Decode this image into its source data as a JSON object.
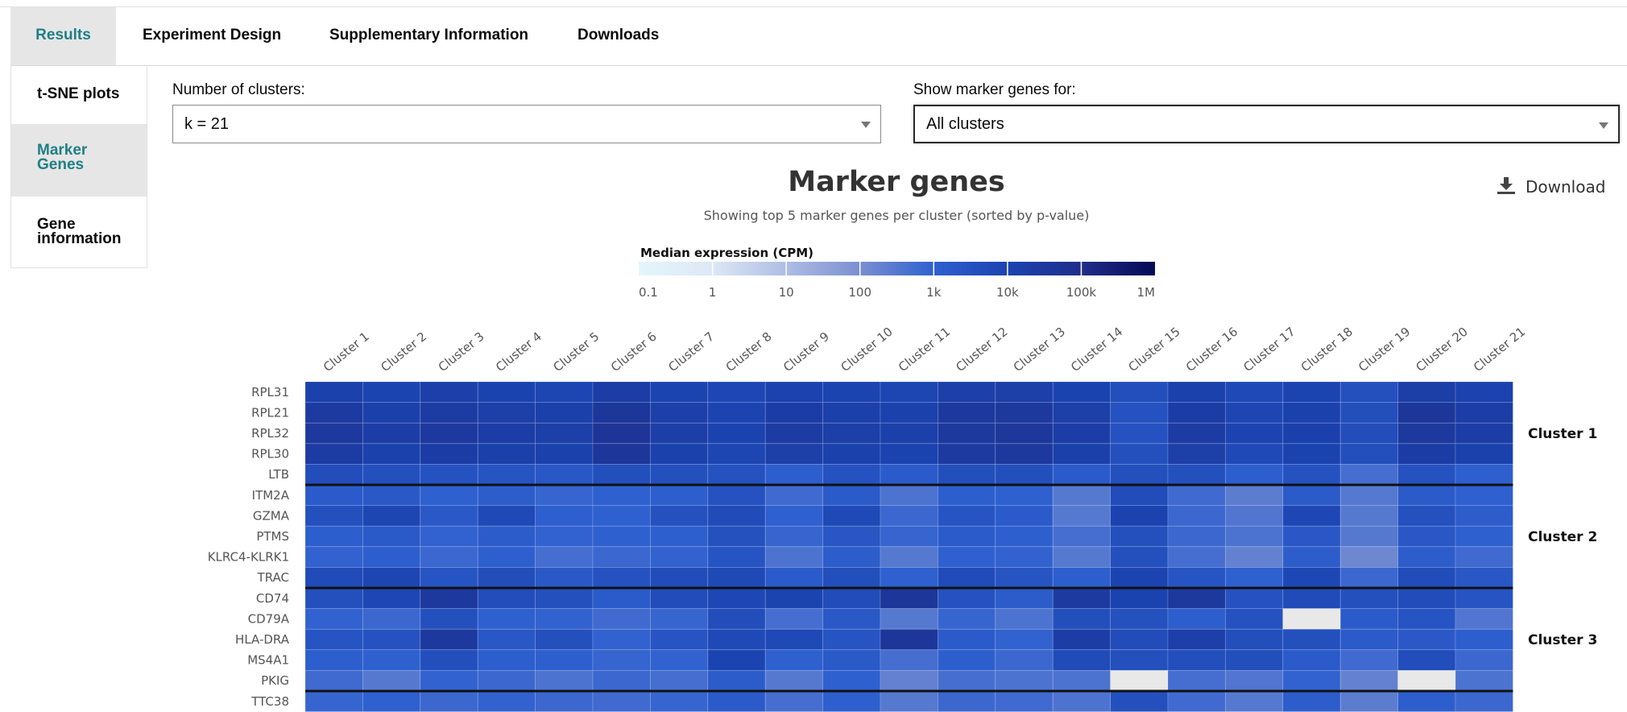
{
  "tabs": [
    {
      "label": "Results"
    },
    {
      "label": "Experiment Design"
    },
    {
      "label": "Supplementary Information"
    },
    {
      "label": "Downloads"
    }
  ],
  "sidebar": {
    "items": [
      {
        "line1": "t-SNE plots",
        "line2": ""
      },
      {
        "line1": "Marker",
        "line2": "Genes"
      },
      {
        "line1": "Gene",
        "line2": "information"
      }
    ]
  },
  "controls": {
    "clusters_label": "Number of clusters:",
    "clusters_value": "k = 21",
    "marker_label": "Show marker genes for:",
    "marker_value": "All clusters"
  },
  "download_label": "Download",
  "colors": {
    "accent": "#1f7f86",
    "missing": "#e8e8e8",
    "divider": "#111111"
  },
  "icons": {
    "download": "download-icon",
    "caret": "chevron-down-icon"
  },
  "chart_data": {
    "type": "heatmap",
    "title": "Marker genes",
    "subtitle": "Showing top 5 marker genes per cluster (sorted by p-value)",
    "legend_title": "Median expression (CPM)",
    "legend_ticks": [
      "0.1",
      "1",
      "10",
      "100",
      "1k",
      "10k",
      "100k",
      "1M"
    ],
    "legend_scale": "log10",
    "legend_range": [
      0.1,
      1000000
    ],
    "legend_colors": [
      "#e3f6fb",
      "#dce8f6",
      "#aebde4",
      "#7a8fd1",
      "#2f60cf",
      "#1b43b0",
      "#1f2d8a",
      "#070a55"
    ],
    "x": [
      "Cluster 1",
      "Cluster 2",
      "Cluster 3",
      "Cluster 4",
      "Cluster 5",
      "Cluster 6",
      "Cluster 7",
      "Cluster 8",
      "Cluster 9",
      "Cluster 10",
      "Cluster 11",
      "Cluster 12",
      "Cluster 13",
      "Cluster 14",
      "Cluster 15",
      "Cluster 16",
      "Cluster 17",
      "Cluster 18",
      "Cluster 19",
      "Cluster 20",
      "Cluster 21"
    ],
    "groups": [
      {
        "label": "Cluster 1",
        "genes": [
          "RPL31",
          "RPL21",
          "RPL32",
          "RPL30",
          "LTB"
        ]
      },
      {
        "label": "Cluster 2",
        "genes": [
          "ITM2A",
          "GZMA",
          "PTMS",
          "KLRC4-KLRK1",
          "TRAC"
        ]
      },
      {
        "label": "Cluster 3",
        "genes": [
          "CD74",
          "CD79A",
          "HLA-DRA",
          "MS4A1",
          "PKIG"
        ]
      },
      {
        "label": "",
        "genes": [
          "TTC38"
        ]
      }
    ],
    "values": [
      [
        12000,
        9000,
        15000,
        10000,
        8000,
        18000,
        9000,
        7000,
        11000,
        9000,
        8000,
        15000,
        16000,
        10000,
        4000,
        12000,
        6000,
        9000,
        3500,
        17000,
        11000
      ],
      [
        25000,
        14000,
        22000,
        16000,
        14000,
        40000,
        15000,
        9000,
        20000,
        14000,
        12000,
        28000,
        30000,
        16000,
        3000,
        20000,
        8000,
        12000,
        4000,
        40000,
        18000
      ],
      [
        30000,
        18000,
        28000,
        18000,
        16000,
        45000,
        17000,
        10000,
        22000,
        16000,
        14000,
        30000,
        35000,
        18000,
        3000,
        22000,
        9000,
        13000,
        4500,
        30000,
        18000
      ],
      [
        22000,
        12000,
        20000,
        14000,
        12000,
        40000,
        12000,
        8000,
        16000,
        12000,
        10000,
        25000,
        30000,
        14000,
        3500,
        16000,
        6000,
        10000,
        4000,
        20000,
        12000
      ],
      [
        4500,
        3500,
        3000,
        2500,
        2000,
        4000,
        3500,
        3000,
        1200,
        3000,
        1500,
        4000,
        4000,
        1500,
        3500,
        3500,
        1200,
        3000,
        500,
        3000,
        1100
      ],
      [
        1500,
        1800,
        1000,
        1300,
        800,
        1000,
        1200,
        3000,
        600,
        1600,
        400,
        1200,
        1000,
        300,
        5000,
        600,
        250,
        1600,
        300,
        1600,
        1000
      ],
      [
        3500,
        8000,
        1800,
        6000,
        1100,
        1000,
        3200,
        5500,
        1000,
        6000,
        700,
        2500,
        1500,
        300,
        11000,
        700,
        350,
        7000,
        300,
        3200,
        1300
      ],
      [
        1200,
        1700,
        900,
        1400,
        900,
        1000,
        1100,
        3200,
        800,
        2200,
        800,
        1500,
        1100,
        500,
        3500,
        700,
        400,
        2000,
        300,
        2000,
        1000
      ],
      [
        900,
        1200,
        700,
        1100,
        500,
        700,
        900,
        2500,
        400,
        1300,
        300,
        1000,
        900,
        300,
        3500,
        500,
        200,
        1300,
        150,
        1300,
        600
      ],
      [
        5500,
        8000,
        2500,
        4500,
        1800,
        3000,
        5000,
        6000,
        1500,
        4000,
        1000,
        5500,
        2500,
        1200,
        9000,
        2500,
        1000,
        7500,
        700,
        5000,
        2000
      ],
      [
        3500,
        7000,
        30000,
        4500,
        3500,
        1500,
        5000,
        7000,
        9000,
        5000,
        40000,
        3000,
        1400,
        25000,
        10000,
        30000,
        3000,
        5500,
        3500,
        5000,
        2500
      ],
      [
        900,
        700,
        3500,
        1000,
        900,
        600,
        800,
        4500,
        500,
        1800,
        300,
        800,
        400,
        4000,
        3200,
        1200,
        3000,
        null,
        1500,
        2500,
        350
      ],
      [
        2500,
        3000,
        30000,
        2000,
        3500,
        900,
        2500,
        6000,
        6000,
        2500,
        40000,
        1500,
        900,
        18000,
        5000,
        15000,
        4000,
        3500,
        1600,
        1800,
        1200
      ],
      [
        1200,
        1000,
        4000,
        1200,
        1100,
        800,
        900,
        9000,
        1000,
        1700,
        500,
        1200,
        700,
        5500,
        3500,
        4000,
        4000,
        1500,
        600,
        4500,
        700
      ],
      [
        600,
        300,
        900,
        700,
        400,
        700,
        500,
        1400,
        300,
        1000,
        200,
        500,
        400,
        400,
        null,
        500,
        350,
        900,
        200,
        null,
        400
      ],
      [
        800,
        1000,
        700,
        900,
        700,
        600,
        800,
        1500,
        500,
        1100,
        300,
        700,
        600,
        400,
        3500,
        600,
        300,
        1300,
        250,
        1200,
        700
      ]
    ]
  }
}
